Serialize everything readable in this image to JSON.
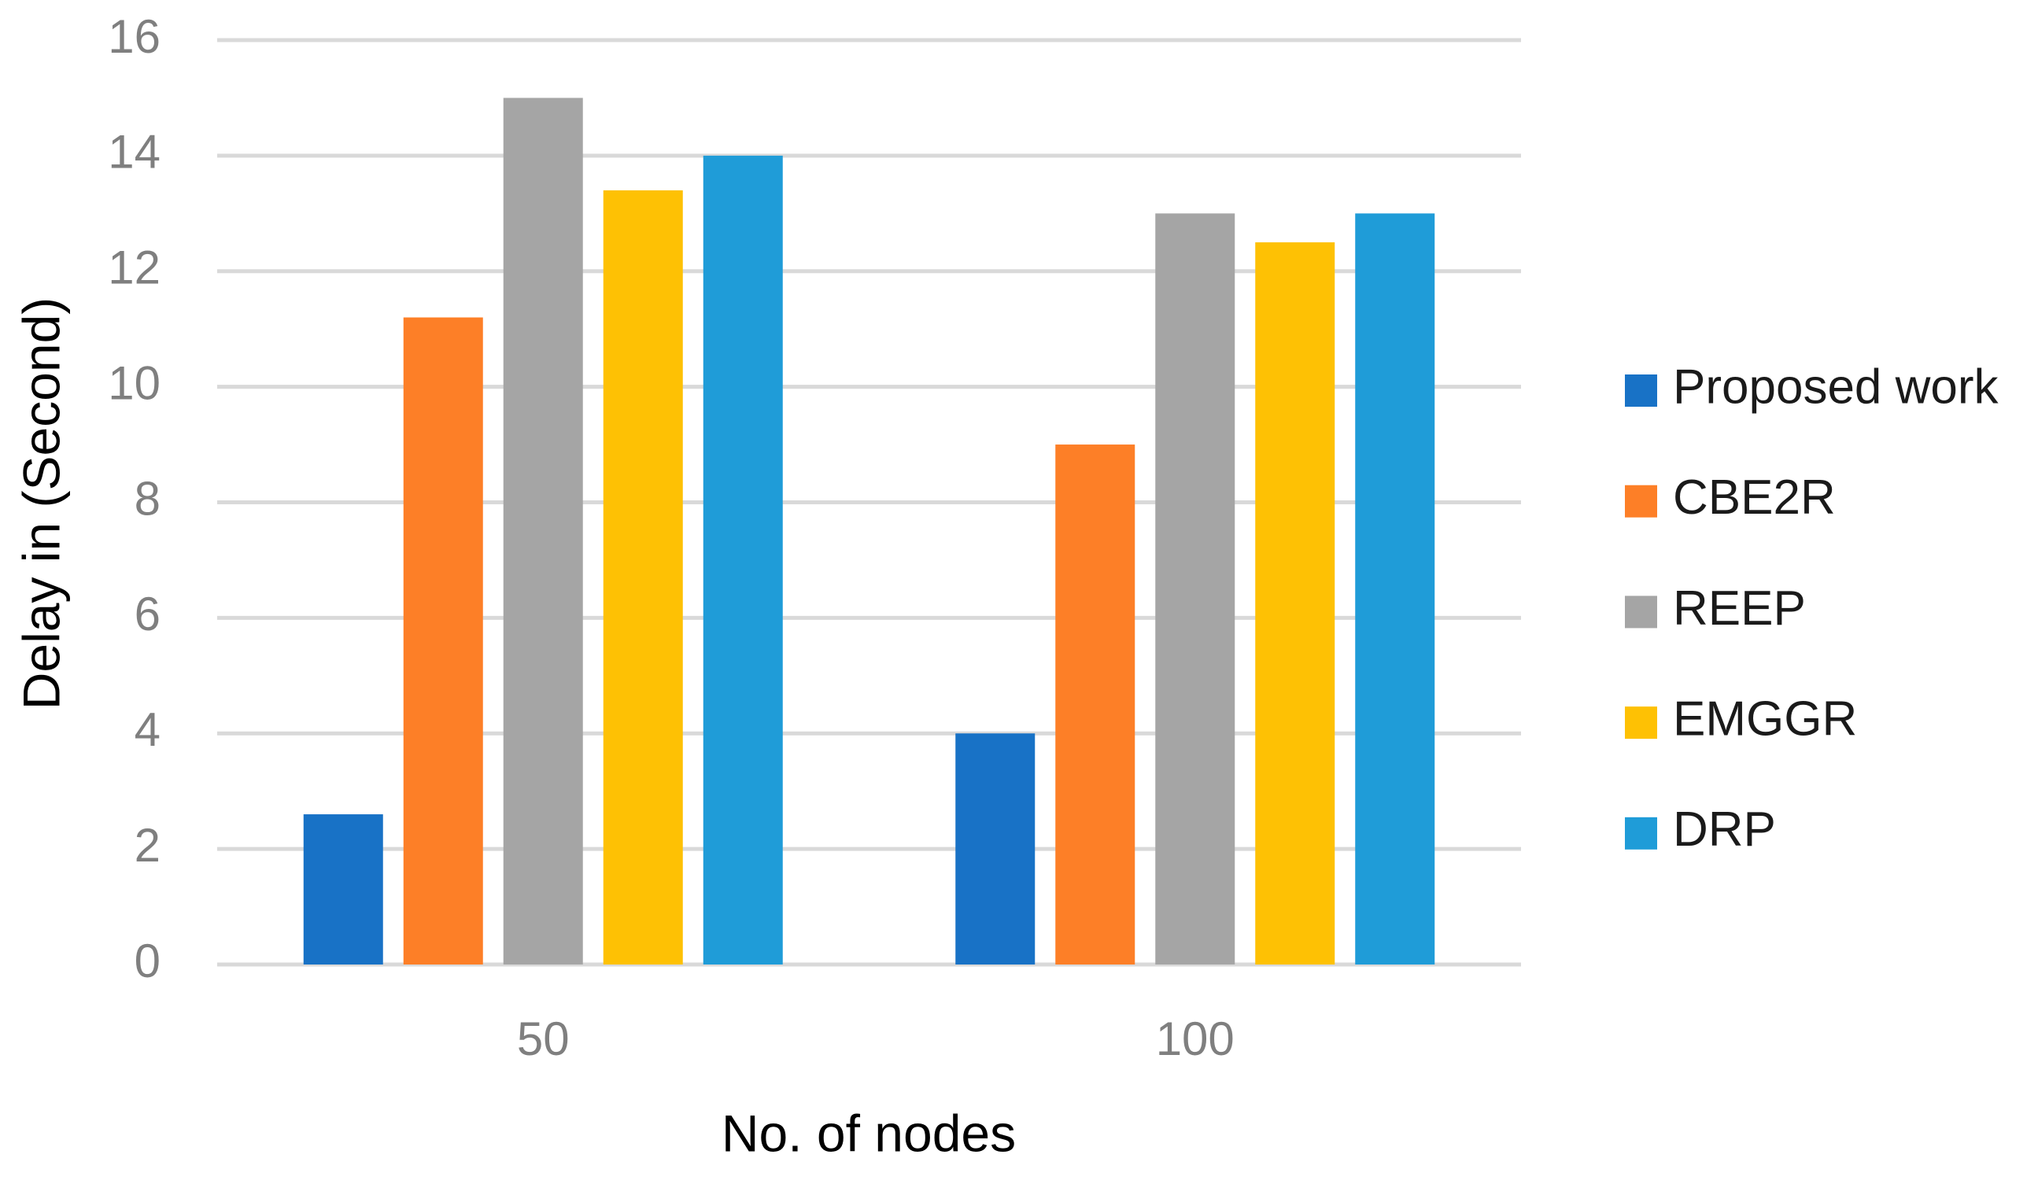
{
  "chart_data": {
    "type": "bar",
    "x_label": "No. of nodes",
    "y_label": "Delay in (Second)",
    "categories": [
      "50",
      "100"
    ],
    "series": [
      {
        "name": "Proposed work",
        "color": "#1872c6",
        "values": [
          2.6,
          4
        ]
      },
      {
        "name": "CBE2R",
        "color": "#fd7f27",
        "values": [
          11.2,
          9
        ]
      },
      {
        "name": "REEP",
        "color": "#a5a5a5",
        "values": [
          15,
          13
        ]
      },
      {
        "name": "EMGGR",
        "color": "#fec104",
        "values": [
          13.4,
          12.5
        ]
      },
      {
        "name": "DRP",
        "color": "#1f9cd8",
        "values": [
          14,
          13
        ]
      }
    ],
    "ylim": [
      0,
      16
    ],
    "yticks": [
      0,
      2,
      4,
      6,
      8,
      10,
      12,
      14,
      16
    ],
    "grid": true,
    "legend": "right"
  }
}
